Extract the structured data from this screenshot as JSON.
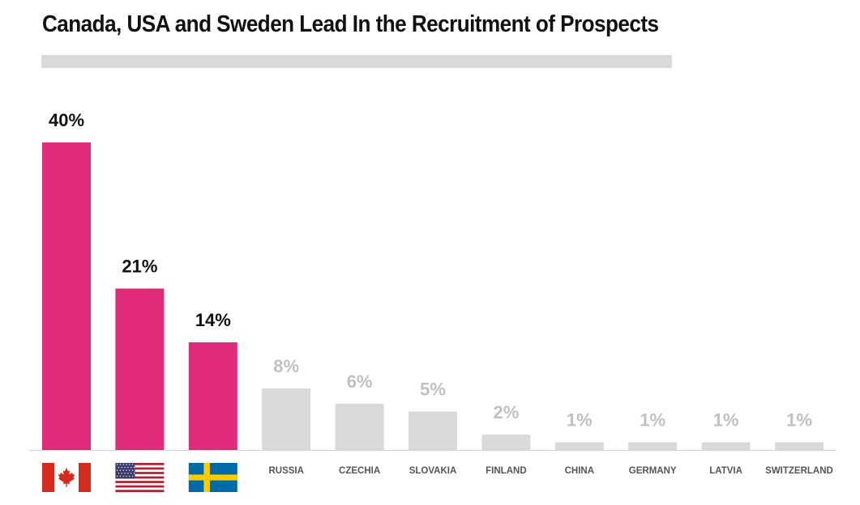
{
  "title": "Canada, USA and Sweden Lead In the Recruitment of Prospects",
  "colors": {
    "highlight": "#e02a7a",
    "muted": "#d9d9d9",
    "muted_text": "#c0c0c0",
    "text": "#111111"
  },
  "chart_data": {
    "type": "bar",
    "title": "Canada, USA and Sweden Lead In the Recruitment of Prospects",
    "xlabel": "",
    "ylabel": "",
    "ylim": [
      0,
      40
    ],
    "grid": false,
    "categories": [
      "Canada",
      "USA",
      "Sweden",
      "RUSSIA",
      "CZECHIA",
      "SLOVAKIA",
      "FINLAND",
      "CHINA",
      "GERMANY",
      "LATVIA",
      "SWITZERLAND"
    ],
    "values": [
      40,
      21,
      14,
      8,
      6,
      5,
      2,
      1,
      1,
      1,
      1
    ],
    "value_labels": [
      "40%",
      "21%",
      "14%",
      "8%",
      "6%",
      "5%",
      "2%",
      "1%",
      "1%",
      "1%",
      "1%"
    ],
    "highlighted": [
      true,
      true,
      true,
      false,
      false,
      false,
      false,
      false,
      false,
      false,
      false
    ],
    "flags": [
      "canada-flag",
      "usa-flag",
      "sweden-flag",
      null,
      null,
      null,
      null,
      null,
      null,
      null,
      null
    ],
    "text_labels": [
      null,
      null,
      null,
      "RUSSIA",
      "CZECHIA",
      "SLOVAKIA",
      "FINLAND",
      "CHINA",
      "GERMANY",
      "LATVIA",
      "SWITZERLAND"
    ]
  }
}
